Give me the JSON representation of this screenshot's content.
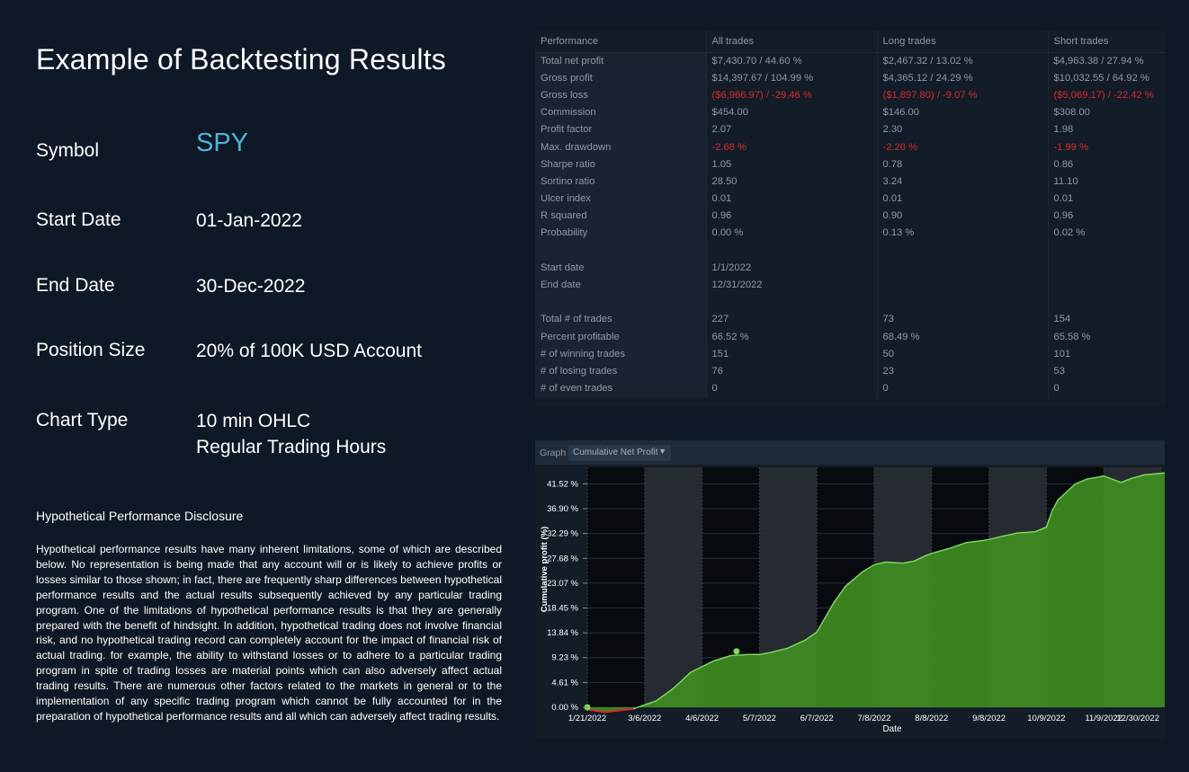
{
  "title": "Example of Backtesting Results",
  "params": {
    "symbol_label": "Symbol",
    "symbol_value": "SPY",
    "start_label": "Start Date",
    "start_value": "01-Jan-2022",
    "end_label": "End Date",
    "end_value": "30-Dec-2022",
    "position_label": "Position Size",
    "position_value": "20% of 100K USD Account",
    "chart_type_label": "Chart Type",
    "chart_type_value_1": "10 min OHLC",
    "chart_type_value_2": "Regular Trading Hours"
  },
  "disclosure": {
    "title": "Hypothetical Performance Disclosure",
    "text": "Hypothetical performance results have many inherent limitations, some of which are described below. No representation is being made that any account will or is likely to achieve profits or losses similar to those shown; in fact, there are frequently sharp differences between hypothetical performance results and the actual results subsequently achieved by any particular trading program. One of the limitations of hypothetical performance results is that they are generally prepared with the benefit of hindsight. In addition, hypothetical trading does not involve financial risk, and no hypothetical trading record can completely account for the impact of financial risk of actual trading. for example, the ability to withstand losses or to adhere to a particular trading program in spite of trading losses are material points which can also adversely affect actual trading results. There are numerous other factors related to the markets in general or to the implementation of any specific trading program which cannot be fully accounted for in the preparation of hypothetical performance results and all which can adversely affect trading results."
  },
  "performance_table": {
    "headers": [
      "Performance",
      "All trades",
      "Long trades",
      "Short trades"
    ],
    "rows": [
      {
        "label": "Total net profit",
        "all": "$7,430.70 / 44.60 %",
        "long": "$2,467.32 / 13.02 %",
        "short": "$4,963.38 / 27.94 %",
        "neg": false
      },
      {
        "label": "Gross profit",
        "all": "$14,397.67 / 104.99 %",
        "long": "$4,365.12 / 24.29 %",
        "short": "$10,032.55 / 64.92 %",
        "neg": false
      },
      {
        "label": "Gross loss",
        "all": "($6,966.97) / -29.46 %",
        "long": "($1,897.80) / -9.07 %",
        "short": "($5,069.17) / -22.42 %",
        "neg": true
      },
      {
        "label": "Commission",
        "all": "$454.00",
        "long": "$146.00",
        "short": "$308.00",
        "neg": false
      },
      {
        "label": "Profit factor",
        "all": "2.07",
        "long": "2.30",
        "short": "1.98",
        "neg": false
      },
      {
        "label": "Max. drawdown",
        "all": "-2.68 %",
        "long": "-2.20 %",
        "short": "-1.99 %",
        "neg": true
      },
      {
        "label": "Sharpe ratio",
        "all": "1.05",
        "long": "0.78",
        "short": "0.86",
        "neg": false
      },
      {
        "label": "Sortino ratio",
        "all": "28.50",
        "long": "3.24",
        "short": "11.10",
        "neg": false
      },
      {
        "label": "Ulcer index",
        "all": "0.01",
        "long": "0.01",
        "short": "0.01",
        "neg": false
      },
      {
        "label": "R squared",
        "all": "0.96",
        "long": "0.90",
        "short": "0.96",
        "neg": false
      },
      {
        "label": "Probability",
        "all": "0.00 %",
        "long": "0.13 %",
        "short": "0.02 %",
        "neg": false
      },
      {
        "label": "",
        "all": "",
        "long": "",
        "short": "",
        "neg": false
      },
      {
        "label": "Start date",
        "all": "1/1/2022",
        "long": "",
        "short": "",
        "neg": false
      },
      {
        "label": "End date",
        "all": "12/31/2022",
        "long": "",
        "short": "",
        "neg": false
      },
      {
        "label": "",
        "all": "",
        "long": "",
        "short": "",
        "neg": false
      },
      {
        "label": "Total # of trades",
        "all": "227",
        "long": "73",
        "short": "154",
        "neg": false
      },
      {
        "label": "Percent profitable",
        "all": "66.52 %",
        "long": "68.49 %",
        "short": "65.58 %",
        "neg": false
      },
      {
        "label": "# of winning trades",
        "all": "151",
        "long": "50",
        "short": "101",
        "neg": false
      },
      {
        "label": "# of losing trades",
        "all": "76",
        "long": "23",
        "short": "53",
        "neg": false
      },
      {
        "label": "# of even trades",
        "all": "0",
        "long": "0",
        "short": "0",
        "neg": false
      }
    ]
  },
  "graph": {
    "label": "Graph",
    "selected": "Cumulative Net Profit"
  },
  "colors": {
    "accent": "#4fb3d9",
    "negative": "#d9282a",
    "area_fill": "#3f8d22",
    "area_line": "#7ed65a"
  },
  "chart_data": {
    "type": "area",
    "xlabel": "Date",
    "ylabel": "Cumulative profit (%)",
    "ylim": [
      0,
      44.6
    ],
    "x_ticks": [
      "1/21/2022",
      "3/6/2022",
      "4/6/2022",
      "5/7/2022",
      "6/7/2022",
      "7/8/2022",
      "8/8/2022",
      "9/8/2022",
      "10/9/2022",
      "11/9/2022",
      "12/30/2022"
    ],
    "y_ticks": [
      "0.00 %",
      "4.61 %",
      "9.23 %",
      "13.84 %",
      "18.45 %",
      "23.07 %",
      "27.68 %",
      "32.29 %",
      "36.90 %",
      "41.52 %"
    ],
    "y_tick_values": [
      0,
      4.61,
      9.23,
      13.84,
      18.45,
      23.07,
      27.68,
      32.29,
      36.9,
      41.52
    ],
    "grid": true,
    "series": [
      {
        "x": [
          0.0,
          0.3,
          0.8,
          1.2,
          1.5,
          1.8,
          2.2,
          2.5,
          2.8,
          3.0,
          3.2,
          3.5,
          3.8,
          4.0,
          4.3,
          4.5,
          4.8,
          5.0,
          5.2,
          5.5,
          5.7,
          5.9,
          6.0,
          6.3,
          6.6,
          6.9,
          7.0,
          7.2,
          7.5,
          7.8,
          8.0,
          8.1,
          8.2,
          8.5,
          8.7,
          8.9,
          9.0,
          9.3,
          9.5,
          9.7,
          10.0,
          10.3,
          10.6,
          10.9,
          11.0
        ],
        "y": [
          -0.4,
          -0.9,
          -0.3,
          1.2,
          3.5,
          6.5,
          8.6,
          9.6,
          9.8,
          9.8,
          10.2,
          11.0,
          12.5,
          14.0,
          19.5,
          22.5,
          25.2,
          26.5,
          27.0,
          26.8,
          27.2,
          28.2,
          28.6,
          29.5,
          30.6,
          31.0,
          31.2,
          31.7,
          32.4,
          32.6,
          33.5,
          36.5,
          38.5,
          41.5,
          42.4,
          42.8,
          43.0,
          41.8,
          42.6,
          43.2,
          43.5,
          43.9,
          44.0,
          44.2,
          44.6
        ]
      }
    ],
    "markers": [
      {
        "x": 0.0,
        "y": 0.0,
        "color": "#7ed65a"
      },
      {
        "x": 2.6,
        "y": 10.4,
        "color": "#7ed65a"
      }
    ],
    "drawdown_segment": {
      "x": [
        0.0,
        0.3,
        0.8
      ],
      "y": [
        -0.4,
        -0.9,
        -0.3
      ]
    }
  }
}
